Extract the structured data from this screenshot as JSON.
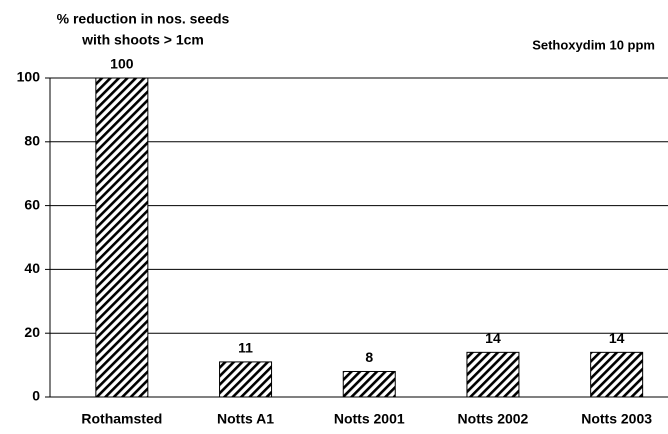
{
  "chart_data": {
    "type": "bar",
    "ylabel": [
      "% reduction in nos. seeds",
      "with shoots > 1cm"
    ],
    "annotation": "Sethoxydim 10 ppm",
    "categories": [
      "Rothamsted",
      "Notts A1",
      "Notts 2001",
      "Notts 2002",
      "Notts 2003"
    ],
    "values": [
      100,
      11,
      8,
      14,
      14
    ],
    "color": "#000000",
    "ylim": [
      0,
      100
    ],
    "yticks": [
      0,
      20,
      40,
      60,
      80,
      100
    ],
    "grid": true
  }
}
